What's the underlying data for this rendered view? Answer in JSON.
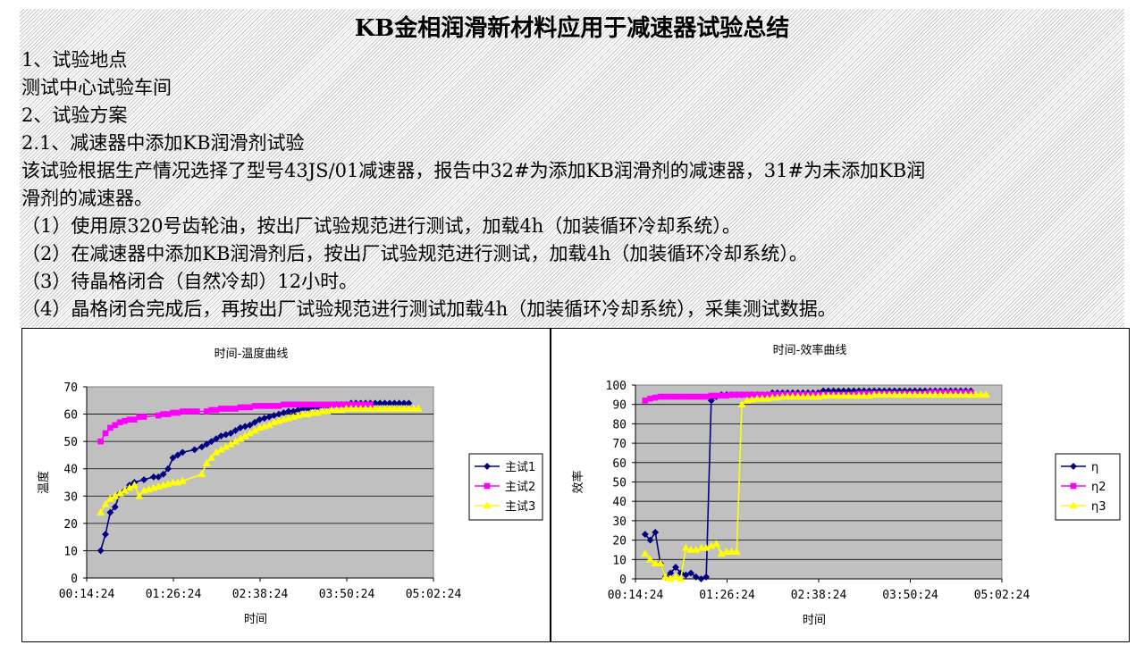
{
  "title": "KB金相润滑新材料应用于减速器试验总结",
  "lines": [
    "1、试验地点",
    "测试中心试验车间",
    "2、试验方案",
    "2.1、减速器中添加KB润滑剂试验",
    "该试验根据生产情况选择了型号43JS/01减速器，报告中32#为添加KB润滑剂的减速器，31#为未添加KB润",
    "滑剂的减速器。",
    "（1）使用原320号齿轮油，按出厂试验规范进行测试，加载4h（加装循环冷却系统）。",
    "（2）在减速器中添加KB润滑剂后，按出厂试验规范进行测试，加载4h（加装循环冷却系统）。",
    "（3）待晶格闭合（自然冷却）12小时。",
    "（4）晶格闭合完成后，再按出厂试验规范进行测试加载4h（加装循环冷却系统），采集测试数据。"
  ],
  "chart_data": [
    {
      "type": "line",
      "title": "时间-温度曲线",
      "xlabel": "时间",
      "ylabel": "温度",
      "x_tick_labels": [
        "00:14:24",
        "01:26:24",
        "02:38:24",
        "03:50:24",
        "05:02:24"
      ],
      "xlim_minutes": [
        14.4,
        302.4
      ],
      "ylim": [
        0,
        70
      ],
      "y_ticks": [
        0,
        10,
        20,
        30,
        40,
        50,
        60,
        70
      ],
      "grid": true,
      "legend": "right",
      "series": [
        {
          "name": "主试1",
          "color": "#000080",
          "marker": "diamond",
          "x": [
            26,
            30,
            34,
            38,
            42,
            46,
            50,
            54,
            62,
            70,
            74,
            78,
            82,
            86,
            90,
            94,
            104,
            110,
            114,
            118,
            122,
            126,
            130,
            134,
            138,
            142,
            146,
            150,
            154,
            158,
            162,
            166,
            170,
            174,
            178,
            182,
            186,
            190,
            194,
            198,
            202,
            206,
            210,
            214,
            218,
            222,
            226,
            230,
            234,
            238,
            242,
            246,
            250,
            254,
            258,
            262,
            266,
            270,
            274,
            278,
            282
          ],
          "y": [
            10,
            16,
            24,
            26,
            31,
            32,
            34,
            35,
            36,
            37,
            37,
            38,
            40,
            44,
            45,
            46,
            47,
            48,
            49,
            50,
            51,
            52,
            52.5,
            53,
            54,
            55,
            55.5,
            56,
            57,
            58,
            58.5,
            59,
            59.5,
            60,
            60.5,
            61,
            61,
            61.5,
            62,
            62,
            62.5,
            62.5,
            63,
            63,
            63,
            63.5,
            63.5,
            63.5,
            64,
            64,
            64,
            64,
            64,
            64,
            64,
            64,
            64,
            64,
            64,
            64,
            64
          ]
        },
        {
          "name": "主试2",
          "color": "#FF00FF",
          "marker": "square",
          "x": [
            26,
            30,
            34,
            38,
            42,
            46,
            50,
            54,
            58,
            62,
            74,
            78,
            82,
            86,
            90,
            94,
            98,
            102,
            106,
            114,
            118,
            122,
            126,
            130,
            134,
            138,
            142,
            146,
            150,
            154,
            158,
            162,
            166,
            170,
            174,
            178,
            182,
            186,
            190,
            194,
            198,
            202,
            206,
            210,
            214,
            218,
            222,
            226,
            230,
            234,
            238,
            242,
            246,
            250
          ],
          "y": [
            50,
            53,
            55,
            56,
            57,
            57.5,
            58,
            58,
            59,
            59,
            59.5,
            60,
            60,
            60.5,
            60.5,
            61,
            61,
            61,
            61,
            61,
            61.5,
            61.5,
            62,
            62,
            62,
            62,
            62.5,
            62.5,
            62.5,
            63,
            63,
            63,
            63,
            63,
            63,
            63.5,
            63.5,
            63.5,
            63.5,
            63.5,
            63.5,
            63.5,
            63.5,
            63.5,
            63.5,
            63.5,
            63.5,
            63.5,
            63.5,
            63.5,
            63.5,
            63.5,
            63.5,
            63.5
          ]
        },
        {
          "name": "主试3",
          "color": "#FFFF00",
          "marker": "triangle",
          "x": [
            26,
            30,
            34,
            38,
            42,
            46,
            50,
            54,
            58,
            62,
            66,
            70,
            74,
            78,
            82,
            86,
            90,
            94,
            110,
            114,
            118,
            122,
            126,
            130,
            134,
            138,
            142,
            146,
            150,
            154,
            158,
            162,
            166,
            170,
            174,
            178,
            182,
            186,
            190,
            194,
            198,
            202,
            206,
            210,
            214,
            218,
            222,
            226,
            230,
            234,
            238,
            242,
            246,
            250,
            254,
            258,
            262,
            266,
            270,
            274,
            278,
            282,
            286,
            290
          ],
          "y": [
            24,
            27,
            29,
            30,
            31,
            32,
            33,
            34,
            30,
            32,
            32.5,
            33,
            33.5,
            34,
            34.5,
            35,
            35,
            35.5,
            38,
            42,
            44,
            46,
            47,
            48,
            49,
            50,
            51,
            52,
            53,
            54,
            55,
            55.5,
            56,
            57,
            57.5,
            58,
            58.5,
            59,
            59.5,
            60,
            60,
            60.5,
            60.5,
            61,
            61,
            61.5,
            61.5,
            61.5,
            62,
            62,
            62,
            62,
            62,
            62,
            62,
            62,
            62,
            62,
            62,
            62,
            62,
            62,
            62,
            62
          ]
        }
      ]
    },
    {
      "type": "line",
      "title": "时间-效率曲线",
      "xlabel": "时间",
      "ylabel": "效率",
      "x_tick_labels": [
        "00:14:24",
        "01:26:24",
        "02:38:24",
        "03:50:24",
        "05:02:24"
      ],
      "xlim_minutes": [
        14.4,
        302.4
      ],
      "ylim": [
        0,
        100
      ],
      "y_ticks": [
        0,
        10,
        20,
        30,
        40,
        50,
        60,
        70,
        80,
        90,
        100
      ],
      "grid": true,
      "legend": "right",
      "series": [
        {
          "name": "η",
          "color": "#000080",
          "marker": "diamond",
          "x": [
            22,
            26,
            30,
            34,
            38,
            42,
            46,
            50,
            54,
            58,
            62,
            66,
            70,
            74,
            78,
            82,
            86,
            90,
            94,
            98,
            102,
            106,
            110,
            114,
            118,
            122,
            126,
            130,
            134,
            138,
            142,
            146,
            150,
            154,
            158,
            162,
            166,
            170,
            174,
            178,
            182,
            186,
            190,
            194,
            198,
            202,
            206,
            210,
            214,
            218,
            222,
            226,
            230,
            234,
            238,
            242,
            246,
            250,
            254,
            258,
            262,
            266,
            270,
            274,
            278
          ],
          "y": [
            23,
            20,
            24,
            8,
            1,
            3,
            6,
            3,
            2,
            3,
            1,
            0,
            1,
            92,
            94,
            95,
            95,
            95,
            95,
            95,
            95,
            95,
            95,
            95,
            95,
            96,
            96,
            96,
            96,
            96,
            96,
            96,
            96,
            96,
            96,
            97,
            97,
            97,
            97,
            97,
            97,
            97,
            97,
            97,
            97,
            97,
            97,
            97,
            97,
            97,
            97,
            97,
            97,
            97,
            97,
            97,
            97,
            97,
            97,
            97,
            97,
            97,
            97,
            97,
            97
          ]
        },
        {
          "name": "η2",
          "color": "#FF00FF",
          "marker": "square",
          "x": [
            22,
            26,
            30,
            34,
            38,
            42,
            46,
            50,
            54,
            58,
            62,
            66,
            70,
            74,
            78,
            82,
            86,
            90,
            94,
            98,
            102,
            106,
            110,
            114,
            118,
            122,
            126,
            130,
            134,
            138,
            142,
            146,
            150,
            154,
            158,
            162,
            166,
            170,
            174,
            178,
            182,
            186,
            190,
            194,
            198,
            202,
            206,
            210,
            214,
            218,
            222,
            226,
            230,
            234,
            238,
            242,
            246,
            250,
            254,
            258,
            262,
            266,
            270,
            274,
            278
          ],
          "y": [
            92,
            93,
            93.5,
            94,
            94,
            94,
            94,
            94,
            94,
            94,
            94,
            94,
            94,
            94.5,
            94.5,
            94.5,
            94.5,
            95,
            95,
            95,
            95,
            95,
            95,
            95,
            95,
            95,
            95,
            95,
            95,
            95,
            95,
            95,
            95,
            95,
            95,
            95,
            95,
            95,
            95,
            95,
            95,
            95,
            95.5,
            95.5,
            95.5,
            95.5,
            95.5,
            95.5,
            95.5,
            95.5,
            95.5,
            95.5,
            95.5,
            95.5,
            95.5,
            95.5,
            96,
            96,
            96,
            96,
            96,
            96,
            96,
            96,
            96
          ]
        },
        {
          "name": "η3",
          "color": "#FFFF00",
          "marker": "triangle",
          "x": [
            22,
            26,
            30,
            34,
            38,
            42,
            46,
            50,
            54,
            58,
            62,
            66,
            70,
            74,
            78,
            82,
            86,
            90,
            94,
            98,
            102,
            106,
            110,
            114,
            118,
            122,
            126,
            130,
            134,
            138,
            142,
            146,
            150,
            154,
            158,
            162,
            166,
            170,
            174,
            178,
            182,
            186,
            190,
            194,
            198,
            202,
            206,
            210,
            214,
            218,
            222,
            226,
            230,
            234,
            238,
            242,
            246,
            250,
            254,
            258,
            262,
            266,
            270,
            274,
            278,
            282,
            286,
            290
          ],
          "y": [
            13,
            10,
            8,
            8,
            1,
            0,
            1,
            0,
            16,
            15,
            15,
            16,
            16,
            17,
            18,
            13,
            14,
            14,
            14,
            90,
            92,
            92.5,
            93,
            93,
            93,
            93.5,
            93.5,
            94,
            94,
            94,
            94,
            94,
            94,
            94,
            94,
            94.5,
            94.5,
            94.5,
            94.5,
            94.5,
            94.5,
            94.5,
            94.5,
            94.5,
            94.5,
            95,
            95,
            95,
            95,
            95,
            95,
            95,
            95,
            95,
            95,
            95,
            95,
            95,
            95,
            95,
            95,
            95,
            95,
            95,
            95,
            95,
            95,
            95
          ]
        }
      ]
    }
  ]
}
